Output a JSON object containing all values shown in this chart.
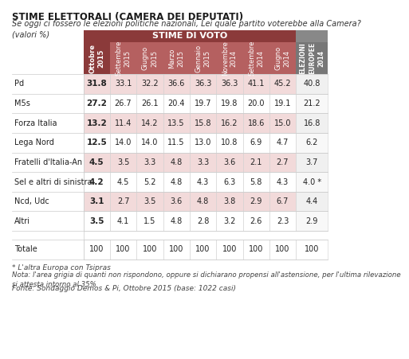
{
  "title": "STIME ELETTORALI (CAMERA DEI DEPUTATI)",
  "subtitle": "Se oggi ci fossero le elezioni politiche nazionali, Lei quale partito voterebbe alla Camera?\n(valori %)",
  "header_main": "STIME DI VOTO",
  "col_headers": [
    "Ottobre\n2015",
    "Settembre\n2015",
    "Giugno\n2015",
    "Marzo\n2015",
    "Gennaio\n2015",
    "Novembre\n2014",
    "Settembre\n2014",
    "Giugno\n2014",
    "ELEZIONI\nEUROPEE\n2014"
  ],
  "row_labels": [
    "Pd",
    "M5s",
    "Forza Italia",
    "Lega Nord",
    "Fratelli d'Italia-An",
    "Sel e altri di sinistra",
    "Ncd, Udc",
    "Altri",
    "",
    "Totale"
  ],
  "data": [
    [
      "31.8",
      "33.1",
      "32.2",
      "36.6",
      "36.3",
      "36.3",
      "41.1",
      "45.2",
      "40.8"
    ],
    [
      "27.2",
      "26.7",
      "26.1",
      "20.4",
      "19.7",
      "19.8",
      "20.0",
      "19.1",
      "21.2"
    ],
    [
      "13.2",
      "11.4",
      "14.2",
      "13.5",
      "15.8",
      "16.2",
      "18.6",
      "15.0",
      "16.8"
    ],
    [
      "12.5",
      "14.0",
      "14.0",
      "11.5",
      "13.0",
      "10.8",
      "6.9",
      "4.7",
      "6.2"
    ],
    [
      "4.5",
      "3.5",
      "3.3",
      "4.8",
      "3.3",
      "3.6",
      "2.1",
      "2.7",
      "3.7"
    ],
    [
      "4.2",
      "4.5",
      "5.2",
      "4.8",
      "4.3",
      "6.3",
      "5.8",
      "4.3",
      "4.0 *"
    ],
    [
      "3.1",
      "2.7",
      "3.5",
      "3.6",
      "4.8",
      "3.8",
      "2.9",
      "6.7",
      "4.4"
    ],
    [
      "3.5",
      "4.1",
      "1.5",
      "4.8",
      "2.8",
      "3.2",
      "2.6",
      "2.3",
      "2.9"
    ],
    [
      null,
      null,
      null,
      null,
      null,
      null,
      null,
      null,
      null
    ],
    [
      "100",
      "100",
      "100",
      "100",
      "100",
      "100",
      "100",
      "100",
      "100"
    ]
  ],
  "header_bg_dark": "#8B3A3A",
  "header_col_bg": "#B56060",
  "header_last_bg": "#888888",
  "row_bg_pink": "#F2DADA",
  "row_bg_white": "#FFFFFF",
  "footer_note1": "* L'altra Europa con Tsipras",
  "footer_note2": "Nota: l'area grigia di quanti non rispondono, oppure si dichiarano propensi all'astensione, per l'ultima rilevazione\nsi attesta intorno al 35%",
  "footer_source": "Fonte: Sondaggio Demos & Pi, Ottobre 2015 (base: 1022 casi)"
}
